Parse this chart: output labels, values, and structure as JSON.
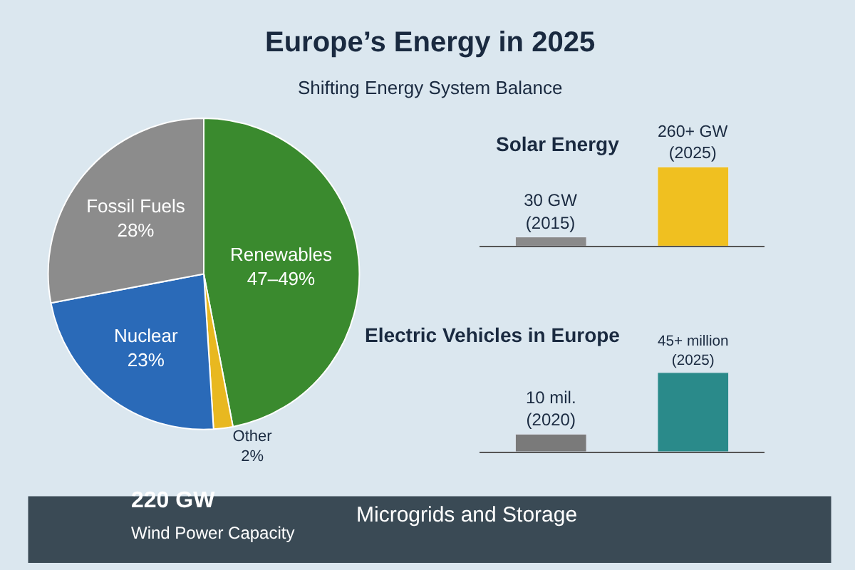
{
  "chart_data": [
    {
      "type": "pie",
      "title": "Europe’s Energy in 2025",
      "subtitle": "Shifting Energy System Balance",
      "categories": [
        "Renewables",
        "Other",
        "Nuclear",
        "Fossil Fuels"
      ],
      "values": [
        47,
        2,
        23,
        28
      ],
      "value_labels": [
        "47–49%",
        "2%",
        "23%",
        "28%"
      ],
      "colors": [
        "#3a8a2e",
        "#e8b820",
        "#2a6ab8",
        "#8c8c8c"
      ]
    },
    {
      "type": "bar",
      "title": "Solar Energy",
      "categories": [
        null,
        null
      ],
      "values": [
        30,
        260
      ],
      "value_labels": [
        "30 GW\n(2015)",
        "260+ GW\n(2025)"
      ],
      "colors": [
        "#8a8a8a",
        "#f0c020"
      ]
    },
    {
      "type": "bar",
      "title": "Electric Vehicles in Europe",
      "categories": [
        null,
        null
      ],
      "values": [
        10,
        45
      ],
      "value_labels": [
        "10 mil.\n(2020)",
        "45+ million\n(2025)"
      ],
      "colors": [
        "#7a7a7a",
        "#2a8a8a"
      ]
    },
    {
      "type": "other",
      "annotations": [
        "220 GW",
        "Wind Power Capacity",
        "Microgrids and Storage"
      ]
    }
  ]
}
